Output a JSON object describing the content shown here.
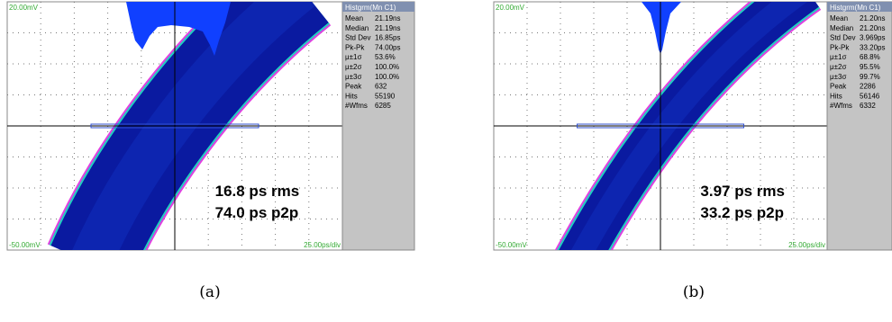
{
  "panels": [
    {
      "label": "(a)",
      "screen": {
        "top_left": "20.00mV",
        "bottom_left": "-50.00mV",
        "bottom_right": "25.00ps/div",
        "annotation": [
          "16.8 ps rms",
          "74.0 ps p2p"
        ]
      },
      "stats": {
        "title": "Histgrm(Mn C1)",
        "rows": [
          [
            "Mean",
            "21.19ns"
          ],
          [
            "Median",
            "21.19ns"
          ],
          [
            "Std Dev",
            "16.85ps"
          ],
          [
            "Pk-Pk",
            "74.00ps"
          ],
          [
            "μ±1σ",
            "53.6%"
          ],
          [
            "μ±2σ",
            "100.0%"
          ],
          [
            "μ±3σ",
            "100.0%"
          ],
          [
            "Peak",
            "632"
          ],
          [
            "Hits",
            "55190"
          ],
          [
            "#Wfms",
            "6285"
          ]
        ]
      }
    },
    {
      "label": "(b)",
      "screen": {
        "top_left": "20.00mV",
        "bottom_left": "-50.00mV",
        "bottom_right": "25.00ps/div",
        "annotation": [
          "3.97 ps rms",
          "33.2 ps p2p"
        ]
      },
      "stats": {
        "title": "Histgrm(Mn C1)",
        "rows": [
          [
            "Mean",
            "21.20ns"
          ],
          [
            "Median",
            "21.20ns"
          ],
          [
            "Std Dev",
            "3.969ps"
          ],
          [
            "Pk-Pk",
            "33.20ps"
          ],
          [
            "μ±1σ",
            "68.8%"
          ],
          [
            "μ±2σ",
            "95.5%"
          ],
          [
            "μ±3σ",
            "99.7%"
          ],
          [
            "Peak",
            "2286"
          ],
          [
            "Hits",
            "56146"
          ],
          [
            "#Wfms",
            "6332"
          ]
        ]
      }
    }
  ]
}
